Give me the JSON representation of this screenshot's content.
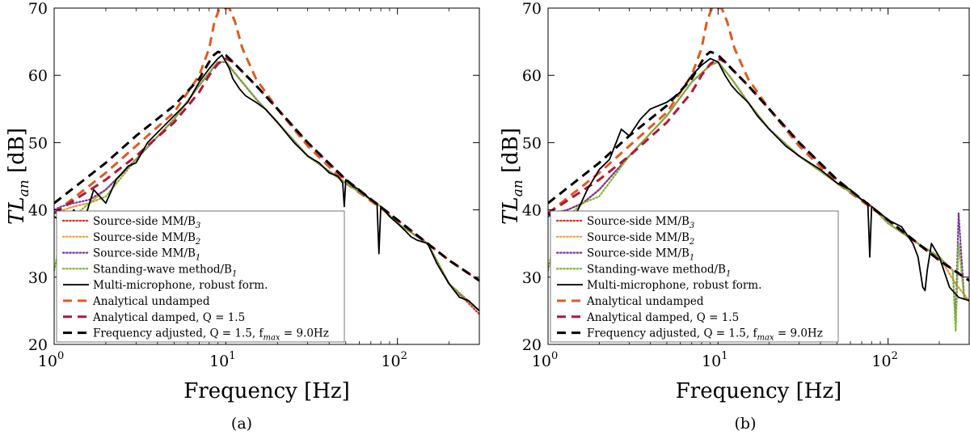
{
  "figure": {
    "xlabel": "Frequency [Hz]",
    "ylabel_main": "TL",
    "ylabel_sub": "an",
    "ylabel_unit": "[dB]"
  },
  "colors": {
    "mm_b3": "#d7301f",
    "mm_b2": "#e8a33a",
    "mm_b1": "#7b2fa0",
    "standing_wave": "#7cb82f",
    "multi_mic": "#000000",
    "analytical_undamped": "#e05a1f",
    "analytical_damped": "#b0163b",
    "freq_adjusted": "#000000"
  },
  "chart_data": [
    {
      "type": "line",
      "caption": "(a)",
      "xscale": "log",
      "xlim": [
        1,
        300
      ],
      "ylim": [
        20,
        70
      ],
      "xticks": [
        {
          "value": 1,
          "base": "10",
          "exp": "0"
        },
        {
          "value": 10,
          "base": "10",
          "exp": "1"
        },
        {
          "value": 100,
          "base": "10",
          "exp": "2"
        }
      ],
      "yticks": [
        "20",
        "30",
        "40",
        "50",
        "60",
        "70"
      ],
      "xlabel": "Frequency [Hz]",
      "ylabel": "TL_an [dB]",
      "legend_position": "lower-left",
      "series": [
        {
          "key": "mm_b3",
          "label": "Source-side MM/B",
          "sub": "3",
          "style": "dotted"
        },
        {
          "key": "mm_b2",
          "label": "Source-side MM/B",
          "sub": "2",
          "style": "dotted"
        },
        {
          "key": "mm_b1",
          "label": "Source-side MM/B",
          "sub": "1",
          "style": "dotted"
        },
        {
          "key": "standing_wave",
          "label": "Standing-wave method/B",
          "sub": "1",
          "style": "dotted"
        },
        {
          "key": "multi_mic",
          "label": "Multi-microphone, robust form.",
          "sub": "",
          "style": "solid"
        },
        {
          "key": "analytical_undamped",
          "label": "Analytical undamped",
          "sub": "",
          "style": "dashed"
        },
        {
          "key": "analytical_damped",
          "label": "Analytical damped, Q = 1.5",
          "sub": "",
          "style": "dashed"
        },
        {
          "key": "freq_adjusted",
          "label": "Frequency adjusted, Q = 1.5, f",
          "sub": "max",
          "tail": " = 9.0Hz",
          "style": "dashed"
        }
      ],
      "curves": {
        "analytical_undamped": {
          "f": [
            1,
            2,
            3,
            5,
            7,
            8,
            8.6,
            9.2,
            10.5,
            11.3,
            12.5,
            15,
            20,
            30,
            50,
            100,
            200,
            300
          ],
          "tl": [
            39.5,
            45.5,
            49.5,
            54.5,
            60,
            64,
            68,
            70,
            70,
            68,
            64,
            59.5,
            55,
            49.5,
            44,
            38.5,
            32.5,
            29.5
          ]
        },
        "analytical_damped": {
          "f": [
            1,
            2,
            3,
            5,
            7,
            8,
            9,
            10,
            11,
            12,
            15,
            20,
            30,
            50,
            100,
            200,
            300
          ],
          "tl": [
            39.5,
            44.5,
            48,
            53,
            57.5,
            60,
            61.7,
            62.5,
            62,
            61,
            58.5,
            55,
            50,
            44.5,
            38.5,
            32.5,
            29.5
          ]
        },
        "freq_adjusted": {
          "f": [
            1,
            2,
            3,
            5,
            7,
            8,
            8.5,
            9,
            9.5,
            10,
            11,
            12,
            15,
            20,
            30,
            50,
            100,
            200,
            300
          ],
          "tl": [
            41,
            47,
            51,
            55.5,
            59.5,
            62,
            63,
            63.5,
            63.3,
            63,
            62,
            61,
            58.5,
            55,
            50,
            44.5,
            38.5,
            32.5,
            29.5
          ]
        },
        "multi_mic": {
          "f": [
            1,
            1.15,
            1.3,
            1.5,
            1.7,
            2,
            2.3,
            2.7,
            3,
            3.5,
            4,
            5,
            6,
            7,
            8,
            9,
            9.5,
            10,
            10.5,
            11,
            12,
            13,
            15,
            17,
            20,
            25,
            30,
            35,
            40,
            45,
            48,
            49,
            50,
            55,
            60,
            70,
            76,
            78,
            80,
            90,
            100,
            110,
            120,
            130,
            150,
            170,
            200,
            230,
            260,
            300
          ],
          "tl": [
            39,
            38,
            40,
            38.5,
            43,
            41,
            44.5,
            46.5,
            47,
            50,
            51.5,
            54,
            56,
            59,
            61,
            62.5,
            63,
            62,
            61,
            59.5,
            58,
            57,
            56,
            55,
            53,
            50,
            48,
            47,
            45.5,
            45,
            44,
            40.5,
            44.5,
            43.5,
            43,
            41.5,
            41,
            33.5,
            40.5,
            39,
            38,
            37,
            36,
            35.5,
            35,
            32,
            29,
            27,
            26.5,
            25
          ]
        },
        "standing_wave": {
          "f": [
            1,
            1.1,
            1.3,
            1.6,
            2,
            3,
            5,
            7,
            9,
            10,
            12,
            15,
            20,
            30,
            50,
            80,
            100,
            150,
            200,
            300
          ],
          "tl": [
            31,
            36,
            39,
            41,
            42,
            47.5,
            53.5,
            58.5,
            62,
            62,
            59.5,
            56.5,
            53,
            48,
            44,
            40.5,
            38,
            35,
            29,
            25
          ]
        },
        "mm_b1": {
          "f": [
            1,
            1.1,
            1.3,
            1.6,
            2,
            3,
            5,
            7,
            9,
            10,
            12,
            15,
            20,
            30,
            50,
            80,
            100,
            150,
            200,
            300
          ],
          "tl": [
            40,
            40.5,
            41,
            41.5,
            43,
            47.5,
            53.5,
            58.5,
            62,
            62,
            59.5,
            56.5,
            53,
            48,
            44,
            40.5,
            38,
            35,
            29,
            25
          ]
        },
        "mm_b2": {
          "f": [
            1,
            1.3,
            1.6,
            2,
            3,
            5,
            7,
            9,
            10,
            12,
            15,
            20,
            30,
            50,
            80,
            100,
            150,
            200,
            300
          ],
          "tl": [
            39.5,
            40.5,
            41,
            43,
            47.5,
            53.5,
            58.5,
            62,
            62,
            59.5,
            56.5,
            53,
            48,
            44,
            40.5,
            38,
            35,
            29,
            25
          ]
        },
        "mm_b3": {
          "f": [
            1,
            1.3,
            1.6,
            2,
            3,
            5,
            7,
            9,
            10,
            12,
            15,
            20,
            30,
            50,
            80,
            100,
            150,
            200,
            300
          ],
          "tl": [
            39.5,
            40.5,
            41,
            43,
            47.5,
            53.5,
            58.5,
            62,
            62,
            59.5,
            56.5,
            53,
            48,
            44,
            40.5,
            38,
            35,
            29,
            24.5
          ]
        }
      }
    },
    {
      "type": "line",
      "caption": "(b)",
      "xscale": "log",
      "xlim": [
        1,
        300
      ],
      "ylim": [
        20,
        70
      ],
      "xticks": [
        {
          "value": 1,
          "base": "10",
          "exp": "0"
        },
        {
          "value": 10,
          "base": "10",
          "exp": "1"
        },
        {
          "value": 100,
          "base": "10",
          "exp": "2"
        }
      ],
      "yticks": [
        "20",
        "30",
        "40",
        "50",
        "60",
        "70"
      ],
      "xlabel": "Frequency [Hz]",
      "ylabel": "TL_an [dB]",
      "legend_position": "lower-left",
      "series": [
        {
          "key": "mm_b3",
          "label": "Source-side MM/B",
          "sub": "3",
          "style": "dotted"
        },
        {
          "key": "mm_b2",
          "label": "Source-side MM/B",
          "sub": "2",
          "style": "dotted"
        },
        {
          "key": "mm_b1",
          "label": "Source-side MM/B",
          "sub": "1",
          "style": "dotted"
        },
        {
          "key": "standing_wave",
          "label": "Standing-wave method/B",
          "sub": "1",
          "style": "dotted"
        },
        {
          "key": "multi_mic",
          "label": "Multi-microphone, robust form.",
          "sub": "",
          "style": "solid"
        },
        {
          "key": "analytical_undamped",
          "label": "Analytical undamped",
          "sub": "",
          "style": "dashed"
        },
        {
          "key": "analytical_damped",
          "label": "Analytical damped, Q = 1.5",
          "sub": "",
          "style": "dashed"
        },
        {
          "key": "freq_adjusted",
          "label": "Frequency adjusted, Q = 1.5, f",
          "sub": "max",
          "tail": " = 9.0Hz",
          "style": "dashed"
        }
      ],
      "curves": {
        "analytical_undamped": {
          "f": [
            1,
            2,
            3,
            5,
            7,
            8,
            8.6,
            9.2,
            10.5,
            11.3,
            12.5,
            15,
            20,
            30,
            50,
            100,
            200,
            300
          ],
          "tl": [
            39.5,
            45.5,
            49.5,
            54.5,
            60,
            64,
            68,
            70,
            70,
            68,
            64,
            59.5,
            55,
            49.5,
            44,
            38.5,
            32.5,
            29.5
          ]
        },
        "analytical_damped": {
          "f": [
            1,
            2,
            3,
            5,
            7,
            8,
            9,
            10,
            11,
            12,
            15,
            20,
            30,
            50,
            100,
            200,
            300
          ],
          "tl": [
            39.5,
            44.5,
            48,
            53,
            57.5,
            60,
            61.7,
            62.5,
            62,
            61,
            58.5,
            55,
            50,
            44.5,
            38.5,
            32.5,
            29.5
          ]
        },
        "freq_adjusted": {
          "f": [
            1,
            2,
            3,
            5,
            7,
            8,
            8.5,
            9,
            9.5,
            10,
            11,
            12,
            15,
            20,
            30,
            50,
            100,
            200,
            300
          ],
          "tl": [
            41,
            47,
            51,
            55.5,
            59.5,
            62,
            63,
            63.5,
            63.3,
            63,
            62,
            61,
            58.5,
            55,
            50,
            44.5,
            38.5,
            32.5,
            29.5
          ]
        },
        "multi_mic": {
          "f": [
            1,
            1.1,
            1.2,
            1.3,
            1.5,
            1.7,
            2,
            2.3,
            2.7,
            3,
            3.5,
            4,
            5,
            6,
            7,
            8,
            9,
            10,
            11,
            12,
            13,
            15,
            17,
            20,
            25,
            30,
            40,
            50,
            60,
            70,
            76,
            78,
            80,
            90,
            100,
            120,
            140,
            150,
            160,
            165,
            170,
            180,
            200,
            230,
            260,
            300
          ],
          "tl": [
            39.5,
            38.5,
            39,
            38,
            40,
            43,
            46,
            47.5,
            52,
            51,
            53.5,
            55,
            56,
            57.5,
            60,
            61.5,
            62.5,
            62,
            60,
            58.5,
            57.5,
            56,
            54,
            52,
            49.5,
            48,
            46,
            44,
            43,
            41.5,
            41,
            33,
            40.5,
            39.5,
            38.5,
            37.5,
            35,
            33,
            28.5,
            28,
            31,
            35,
            33,
            28.5,
            27,
            26.5
          ]
        },
        "standing_wave": {
          "f": [
            1,
            1.1,
            1.3,
            1.6,
            2,
            3,
            5,
            7,
            9,
            10,
            12,
            15,
            20,
            30,
            50,
            80,
            100,
            150,
            200,
            240,
            250,
            260,
            280,
            300
          ],
          "tl": [
            31,
            36,
            39,
            41,
            42,
            48,
            54,
            59,
            61.5,
            62,
            59.5,
            56,
            52,
            48,
            44,
            40.5,
            38,
            35,
            33,
            31,
            22,
            35,
            27,
            26.5
          ]
        },
        "mm_b1": {
          "f": [
            1,
            1.1,
            1.3,
            1.6,
            2,
            3,
            5,
            7,
            9,
            10,
            12,
            15,
            20,
            30,
            50,
            80,
            100,
            150,
            200,
            240,
            250,
            260,
            280,
            300
          ],
          "tl": [
            39,
            39.5,
            40,
            41,
            43,
            48,
            54,
            59,
            61.5,
            62,
            59.5,
            56,
            52,
            48,
            44,
            40.5,
            38,
            35,
            33,
            31,
            23.5,
            39.5,
            27,
            26.5
          ]
        },
        "mm_b2": {
          "f": [
            1,
            1.3,
            1.6,
            2,
            3,
            5,
            7,
            9,
            10,
            12,
            15,
            20,
            30,
            50,
            80,
            100,
            150,
            200,
            250,
            300
          ],
          "tl": [
            39.5,
            40,
            41,
            43,
            48,
            54,
            59,
            61.5,
            62,
            59.5,
            56,
            52,
            48,
            44,
            40.5,
            38,
            35,
            33,
            29,
            26.5
          ]
        },
        "mm_b3": {
          "f": [
            1,
            1.3,
            1.6,
            2,
            3,
            5,
            7,
            9,
            10,
            12,
            15,
            20,
            30,
            50,
            80,
            100,
            150,
            200,
            250,
            300
          ],
          "tl": [
            39.5,
            40,
            41,
            43,
            48,
            54,
            59,
            61.5,
            62,
            59.5,
            56,
            52,
            48,
            44,
            40.5,
            38,
            35,
            33,
            29,
            26.5
          ]
        }
      }
    }
  ]
}
